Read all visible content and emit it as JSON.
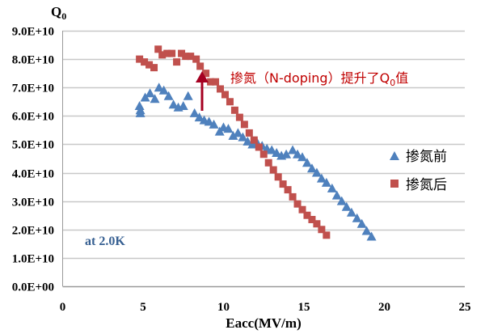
{
  "chart_data": {
    "type": "scatter",
    "title": "",
    "xlabel": "Eacc(MV/m)",
    "ylabel": "Q",
    "ylabel_sub": "0",
    "xlim": [
      0,
      25
    ],
    "ylim": [
      0,
      90000000000.0
    ],
    "x_ticks": [
      "0",
      "5",
      "10",
      "15",
      "20",
      "25"
    ],
    "y_ticks": [
      "0.0E+00",
      "1.0E+10",
      "2.0E+10",
      "3.0E+10",
      "4.0E+10",
      "5.0E+10",
      "6.0E+10",
      "7.0E+10",
      "8.0E+10",
      "9.0E+10"
    ],
    "grid": "horizontal",
    "legend_placement": "right",
    "annotation": {
      "text": "掺氮（N-doping）提升了Q",
      "sub": "0",
      "tail": "值",
      "color": "#C00000"
    },
    "condition_label": {
      "text": "at 2.0K",
      "color": "#376092"
    },
    "series": [
      {
        "name": "掺氮前",
        "marker": "triangle",
        "color": "#4F81BD",
        "points": [
          [
            4.78,
            6.35
          ],
          [
            4.83,
            6.2
          ],
          [
            4.83,
            6.1
          ],
          [
            5.13,
            6.65
          ],
          [
            5.43,
            6.8
          ],
          [
            5.73,
            6.6
          ],
          [
            5.99,
            7.0
          ],
          [
            6.29,
            6.9
          ],
          [
            6.59,
            6.7
          ],
          [
            6.89,
            6.4
          ],
          [
            7.19,
            6.3
          ],
          [
            7.5,
            6.35
          ],
          [
            7.8,
            6.7
          ],
          [
            8.2,
            6.1
          ],
          [
            8.5,
            5.95
          ],
          [
            8.8,
            5.85
          ],
          [
            9.1,
            5.8
          ],
          [
            9.4,
            5.7
          ],
          [
            9.76,
            5.45
          ],
          [
            10.0,
            5.6
          ],
          [
            10.3,
            5.55
          ],
          [
            10.6,
            5.3
          ],
          [
            10.9,
            5.4
          ],
          [
            11.2,
            5.25
          ],
          [
            11.5,
            5.1
          ],
          [
            11.8,
            5.0
          ],
          [
            12.1,
            5.05
          ],
          [
            12.4,
            4.95
          ],
          [
            12.7,
            4.85
          ],
          [
            13.0,
            4.8
          ],
          [
            13.3,
            4.7
          ],
          [
            13.6,
            4.6
          ],
          [
            13.9,
            4.65
          ],
          [
            14.3,
            4.8
          ],
          [
            14.6,
            4.65
          ],
          [
            14.9,
            4.55
          ],
          [
            15.2,
            4.35
          ],
          [
            15.5,
            4.15
          ],
          [
            15.8,
            4.0
          ],
          [
            16.1,
            3.8
          ],
          [
            16.4,
            3.65
          ],
          [
            16.75,
            3.45
          ],
          [
            17.05,
            3.2
          ],
          [
            17.35,
            3.0
          ],
          [
            17.65,
            2.8
          ],
          [
            17.96,
            2.6
          ],
          [
            18.3,
            2.4
          ],
          [
            18.6,
            2.2
          ],
          [
            18.9,
            1.95
          ],
          [
            19.2,
            1.75
          ]
        ]
      },
      {
        "name": "掺氮后",
        "marker": "square",
        "color": "#C0504D",
        "points": [
          [
            4.78,
            8.0
          ],
          [
            5.08,
            7.9
          ],
          [
            5.38,
            7.8
          ],
          [
            5.68,
            7.7
          ],
          [
            5.94,
            8.35
          ],
          [
            6.19,
            8.15
          ],
          [
            6.49,
            8.2
          ],
          [
            6.79,
            8.2
          ],
          [
            7.09,
            7.9
          ],
          [
            7.39,
            8.2
          ],
          [
            7.65,
            8.1
          ],
          [
            7.95,
            8.1
          ],
          [
            8.3,
            8.0
          ],
          [
            8.55,
            7.75
          ],
          [
            8.9,
            7.5
          ],
          [
            9.2,
            7.2
          ],
          [
            9.5,
            7.2
          ],
          [
            9.8,
            6.95
          ],
          [
            10.1,
            6.75
          ],
          [
            10.4,
            6.5
          ],
          [
            10.7,
            6.2
          ],
          [
            11.0,
            5.95
          ],
          [
            11.3,
            5.7
          ],
          [
            11.6,
            5.4
          ],
          [
            11.9,
            5.15
          ],
          [
            12.2,
            4.9
          ],
          [
            12.5,
            4.65
          ],
          [
            12.8,
            4.35
          ],
          [
            13.1,
            4.1
          ],
          [
            13.4,
            3.85
          ],
          [
            13.7,
            3.6
          ],
          [
            14.0,
            3.4
          ],
          [
            14.3,
            3.15
          ],
          [
            14.6,
            2.9
          ],
          [
            14.9,
            2.7
          ],
          [
            15.2,
            2.5
          ],
          [
            15.5,
            2.35
          ],
          [
            15.8,
            2.2
          ],
          [
            16.1,
            2.0
          ],
          [
            16.4,
            1.8
          ]
        ]
      }
    ]
  }
}
